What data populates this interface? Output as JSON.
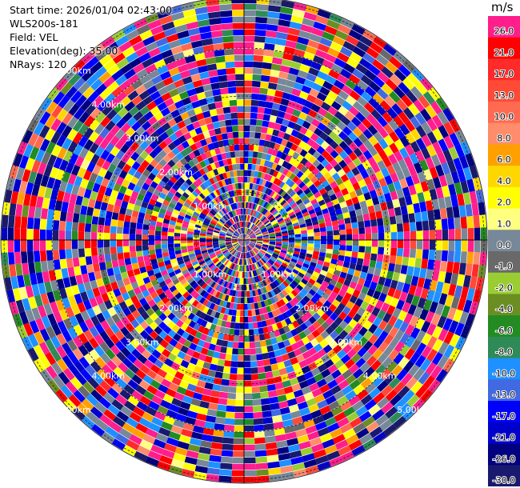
{
  "info": {
    "start_time": "Start time: 2026/01/04 02:43:00",
    "instrument": "WLS200s-181",
    "field": "Field: VEL",
    "elevation": "Elevation(deg): 35.00",
    "nrays": "NRays: 120"
  },
  "colorbar": {
    "unit": "m/s",
    "levels": [
      {
        "label": "26.0",
        "color": "#ff1e8c"
      },
      {
        "label": "21.0",
        "color": "#ff0000"
      },
      {
        "label": "17.0",
        "color": "#ff2a2a"
      },
      {
        "label": "13.0",
        "color": "#ff4a36"
      },
      {
        "label": "10.0",
        "color": "#ff6a50"
      },
      {
        "label": "8.0",
        "color": "#ff8c6a"
      },
      {
        "label": "6.0",
        "color": "#ffa000"
      },
      {
        "label": "4.0",
        "color": "#ffd700"
      },
      {
        "label": "2.0",
        "color": "#ffff00"
      },
      {
        "label": "1.0",
        "color": "#ffff80"
      },
      {
        "label": "0.0",
        "color": "#778899"
      },
      {
        "label": "-1.0",
        "color": "#696969"
      },
      {
        "label": "-2.0",
        "color": "#9acd32"
      },
      {
        "label": "-4.0",
        "color": "#6b8e23"
      },
      {
        "label": "-6.0",
        "color": "#228b22"
      },
      {
        "label": "-8.0",
        "color": "#2e8b57"
      },
      {
        "label": "-10.0",
        "color": "#1e90ff"
      },
      {
        "label": "-13.0",
        "color": "#4169e1"
      },
      {
        "label": "-17.0",
        "color": "#0000ff"
      },
      {
        "label": "-21.0",
        "color": "#0000cd"
      },
      {
        "label": "-26.0",
        "color": "#000080"
      },
      {
        "label": "-30.0",
        "color": "#191970"
      }
    ]
  },
  "chart_data": {
    "type": "heatmap",
    "projection": "polar (PPI)",
    "field": "VEL",
    "n_rays": 120,
    "elevation_deg": 35.0,
    "range_ring_labels": [
      "1.00km",
      "2.00km",
      "3.00km",
      "4.00km",
      "5.00km"
    ],
    "range_ring_label_azimuths_deg": [
      135,
      225,
      315
    ],
    "grid": true,
    "colorbar_side": "right",
    "data_note": "velocity field appears as noisy multicolored radial bins across the full disc"
  }
}
